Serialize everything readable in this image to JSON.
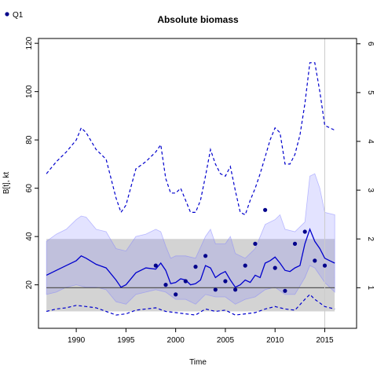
{
  "chart_data": {
    "type": "line",
    "title": "Absolute biomass",
    "xlabel": "Time",
    "ylabel": "B[t], kt",
    "xlim": [
      1986.2,
      2018.2
    ],
    "ylim": [
      2,
      122
    ],
    "x_ticks": [
      1990,
      1995,
      2000,
      2005,
      2010,
      2015
    ],
    "y_ticks": [
      20,
      40,
      60,
      80,
      100,
      120
    ],
    "y2_ticks": [
      1,
      2,
      3,
      4,
      5,
      6
    ],
    "y2_values_in_left_units": [
      18.8,
      39.0,
      59.2,
      79.4,
      99.6,
      119.8
    ],
    "grid": false,
    "legend_position": "top-left",
    "legend": [
      {
        "name": "Q1",
        "color": "#00008b",
        "marker": "circle"
      }
    ],
    "colors": {
      "median": "#0000cd",
      "ci_fill": "#8080ff",
      "ref_band": "#d3d3d3",
      "ref_line": "#555555",
      "points": "#00008b",
      "vline": "#cccccc"
    },
    "vline_x": 2015,
    "reference_band": {
      "lower": 9,
      "upper": 39,
      "line": 18.8
    },
    "observations": {
      "name": "Q1",
      "x": [
        1998,
        1999,
        2000,
        2001,
        2002,
        2003,
        2004,
        2005,
        2006,
        2007,
        2008,
        2009,
        2010,
        2011,
        2012,
        2013,
        2014,
        2015
      ],
      "y": [
        28,
        20,
        16,
        21.5,
        27.5,
        32,
        18,
        21.5,
        18,
        28,
        37,
        51,
        27,
        17.5,
        37,
        42,
        30,
        28
      ]
    },
    "series": [
      {
        "name": "median",
        "x": [
          1987,
          1988,
          1989,
          1990,
          1990.5,
          1991,
          1992,
          1993,
          1994,
          1994.5,
          1995,
          1996,
          1997,
          1998,
          1998.5,
          1999,
          1999.5,
          2000,
          2000.5,
          2001,
          2001.5,
          2002,
          2002.5,
          2003,
          2003.5,
          2004,
          2004.5,
          2005,
          2005.5,
          2006,
          2006.5,
          2007,
          2007.5,
          2008,
          2008.5,
          2009,
          2009.5,
          2010,
          2010.5,
          2011,
          2011.5,
          2012,
          2012.5,
          2013,
          2013.5,
          2014,
          2014.5,
          2015,
          2015.5,
          2016
        ],
        "y": [
          24,
          26,
          28,
          30,
          32,
          31,
          28.5,
          27,
          22,
          19,
          20,
          25,
          27,
          26.5,
          29,
          26,
          20.5,
          21,
          22.5,
          22,
          20,
          20.5,
          22,
          28,
          27,
          23,
          24.5,
          25.5,
          22,
          19,
          20,
          22,
          21,
          24,
          23,
          29,
          30,
          31.5,
          29,
          26,
          25.5,
          27,
          28,
          37,
          43,
          38,
          35,
          31,
          30,
          29
        ]
      },
      {
        "name": "upper-ci",
        "x": [
          1987,
          1988,
          1989,
          1990,
          1990.5,
          1991,
          1992,
          1993,
          1994,
          1995,
          1996,
          1997,
          1998,
          1998.5,
          1999,
          1999.5,
          2000,
          2001,
          2002,
          2003,
          2003.5,
          2004,
          2005,
          2005.5,
          2006,
          2007,
          2008,
          2009,
          2010,
          2010.5,
          2011,
          2012,
          2013,
          2013.5,
          2014,
          2014.5,
          2015,
          2016
        ],
        "y": [
          38,
          41,
          43,
          47,
          48.5,
          48,
          43,
          42,
          35,
          34,
          40,
          41,
          43,
          42,
          36,
          31,
          32,
          32,
          31,
          40,
          43,
          37,
          37,
          40,
          33,
          31,
          35,
          45,
          47,
          49,
          43,
          42,
          46,
          65,
          66,
          60,
          50,
          49
        ]
      },
      {
        "name": "lower-ci",
        "x": [
          1987,
          1988,
          1989,
          1990,
          1991,
          1992,
          1993,
          1994,
          1995,
          1996,
          1997,
          1998,
          1999,
          2000,
          2001,
          2002,
          2003,
          2004,
          2005,
          2006,
          2007,
          2008,
          2009,
          2010,
          2011,
          2012,
          2013,
          2013.5,
          2014,
          2015,
          2016
        ],
        "y": [
          16,
          17,
          19,
          20,
          19,
          19,
          18,
          13,
          12,
          16,
          17,
          18,
          17,
          14,
          14,
          12,
          16,
          15,
          15,
          12,
          14,
          15,
          18,
          19,
          16,
          16,
          23,
          28,
          27,
          21,
          17
        ]
      },
      {
        "name": "upper-dashed",
        "x": [
          1987,
          1988,
          1989,
          1990,
          1990.5,
          1991,
          1992,
          1993,
          1994,
          1994.5,
          1995,
          1996,
          1997,
          1998,
          1998.5,
          1999,
          1999.5,
          2000,
          2000.5,
          2001,
          2001.5,
          2002,
          2002.5,
          2003,
          2003.5,
          2004,
          2004.5,
          2005,
          2005.5,
          2006,
          2006.5,
          2007,
          2007.5,
          2008,
          2008.5,
          2009,
          2009.5,
          2010,
          2010.5,
          2011,
          2011.5,
          2012,
          2012.5,
          2013,
          2013.5,
          2014,
          2014.5,
          2015,
          2016
        ],
        "y": [
          66,
          71,
          75,
          80,
          85,
          83,
          76,
          72,
          56,
          50,
          53,
          68,
          71,
          75,
          78,
          64,
          58,
          58,
          60,
          55,
          50,
          50,
          55,
          65,
          76,
          70,
          66,
          65,
          69,
          59,
          50,
          49,
          55,
          60,
          66,
          73,
          80,
          85,
          83,
          70,
          70,
          74,
          82,
          95,
          112,
          112,
          100,
          86,
          84
        ]
      },
      {
        "name": "lower-dashed",
        "x": [
          1987,
          1988,
          1989,
          1990,
          1991,
          1992,
          1993,
          1994,
          1995,
          1996,
          1997,
          1998,
          1999,
          2000,
          2001,
          2002,
          2003,
          2004,
          2005,
          2006,
          2007,
          2008,
          2009,
          2010,
          2011,
          2012,
          2013,
          2013.5,
          2014,
          2015,
          2016
        ],
        "y": [
          9,
          10,
          10.5,
          11.5,
          11,
          10.5,
          9,
          7.5,
          8,
          9.5,
          10,
          10.5,
          9,
          8.5,
          8,
          7.5,
          10,
          9,
          9.5,
          7.5,
          8,
          8.5,
          10,
          11,
          10,
          9.5,
          14,
          16,
          14,
          11,
          10
        ]
      }
    ]
  }
}
